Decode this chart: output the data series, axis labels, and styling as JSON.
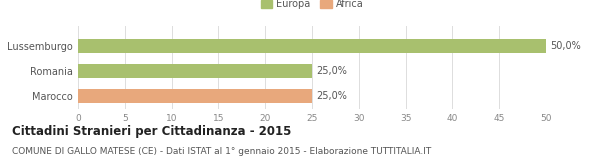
{
  "categories": [
    "Lussemburgo",
    "Romania",
    "Marocco"
  ],
  "values": [
    50.0,
    25.0,
    25.0
  ],
  "bar_colors": [
    "#a8c06e",
    "#a8c06e",
    "#e8a87c"
  ],
  "bar_labels": [
    "50,0%",
    "25,0%",
    "25,0%"
  ],
  "legend_labels": [
    "Europa",
    "Africa"
  ],
  "legend_colors": [
    "#a8c06e",
    "#e8a87c"
  ],
  "xlim": [
    0,
    50
  ],
  "xticks": [
    0,
    5,
    10,
    15,
    20,
    25,
    30,
    35,
    40,
    45,
    50
  ],
  "title": "Cittadini Stranieri per Cittadinanza - 2015",
  "subtitle": "COMUNE DI GALLO MATESE (CE) - Dati ISTAT al 1° gennaio 2015 - Elaborazione TUTTITALIA.IT",
  "background_color": "#ffffff",
  "grid_color": "#dddddd",
  "title_fontsize": 8.5,
  "subtitle_fontsize": 6.5,
  "label_fontsize": 7,
  "tick_fontsize": 6.5,
  "bar_label_fontsize": 7
}
